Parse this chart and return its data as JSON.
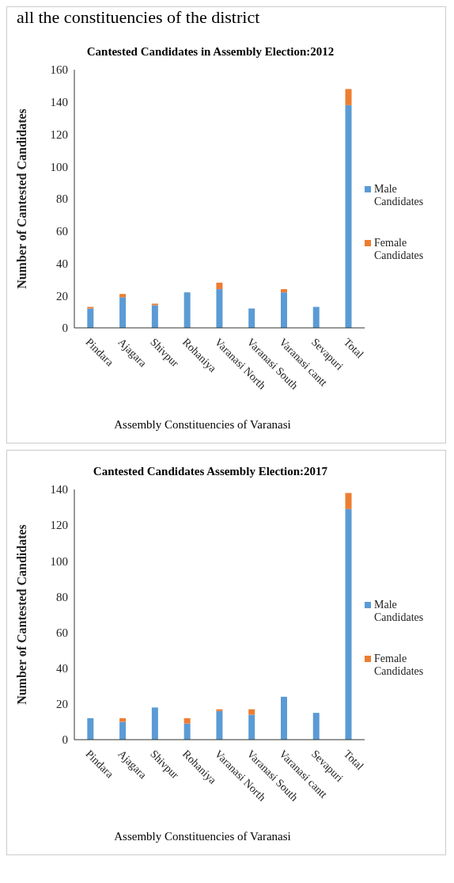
{
  "chart_data": [
    {
      "type": "bar",
      "title": "Cantested Candidates in Assembly Election:2012",
      "xlabel": "Assembly Constituencies of Varanasi",
      "ylabel": "Number of Cantested Candidates",
      "annotations": [
        "all the constituencies of the district"
      ],
      "categories": [
        "Pindara",
        "Ajagara",
        "Shivpur",
        "Rohaniya",
        "Varanasi North",
        "Varanasi South",
        "Varanasi cantt",
        "Sevapuri",
        "Total"
      ],
      "stacked": true,
      "legend": "right",
      "ylim": [
        0,
        160
      ],
      "yticks": [
        0,
        20,
        40,
        60,
        80,
        100,
        120,
        140,
        160
      ],
      "series": [
        {
          "name": "Male Candidates",
          "color": "#5b9bd5",
          "values": [
            12,
            19,
            14,
            22,
            24,
            12,
            22,
            13,
            138
          ]
        },
        {
          "name": "Female Candidates",
          "color": "#ed7d31",
          "values": [
            1,
            2,
            1,
            0,
            4,
            0,
            2,
            0,
            10
          ]
        }
      ]
    },
    {
      "type": "bar",
      "title": "Cantested Candidates Assembly Election:2017",
      "xlabel": "Assembly Constituencies of Varanasi",
      "ylabel": "Number of Cantested Candidates",
      "categories": [
        "Pindara",
        "Ajagara",
        "Shivpur",
        "Rohaniya",
        "Varanasi North",
        "Varanasi South",
        "Varanasi cantt",
        "Sevapuri",
        "Total"
      ],
      "stacked": true,
      "legend": "right",
      "ylim": [
        0,
        140
      ],
      "yticks": [
        0,
        20,
        40,
        60,
        80,
        100,
        120,
        140
      ],
      "series": [
        {
          "name": "Male Candidates",
          "color": "#5b9bd5",
          "values": [
            12,
            10,
            18,
            9,
            16,
            14,
            24,
            15,
            129
          ]
        },
        {
          "name": "Female Candidates",
          "color": "#ed7d31",
          "values": [
            0,
            2,
            0,
            3,
            1,
            3,
            0,
            0,
            9
          ]
        }
      ]
    }
  ]
}
